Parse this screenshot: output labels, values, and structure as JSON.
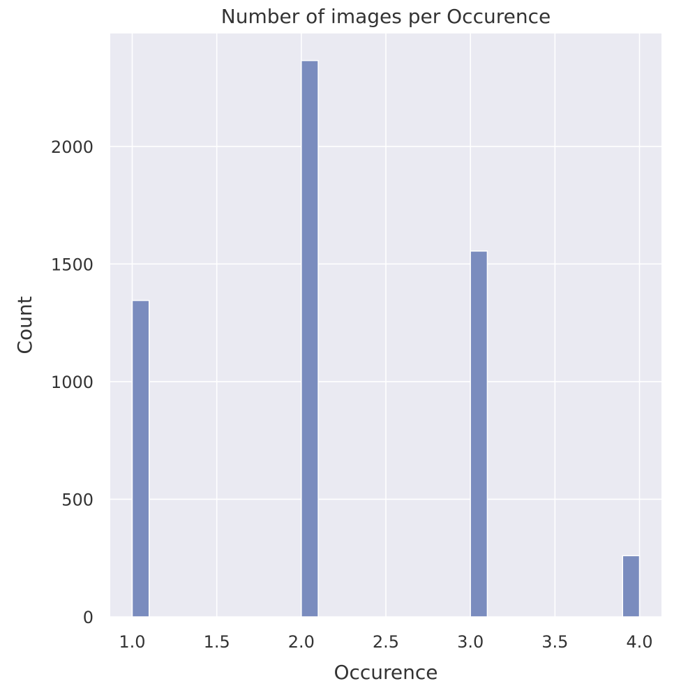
{
  "chart_data": {
    "type": "bar",
    "title": "Number of images per Occurence",
    "xlabel": "Occurence",
    "ylabel": "Count",
    "xlim": [
      0.87,
      4.13
    ],
    "ylim": [
      0,
      2480
    ],
    "xticks": [
      1.0,
      1.5,
      2.0,
      2.5,
      3.0,
      3.5,
      4.0
    ],
    "xtick_labels": [
      "1.0",
      "1.5",
      "2.0",
      "2.5",
      "3.0",
      "3.5",
      "4.0"
    ],
    "yticks": [
      0,
      500,
      1000,
      1500,
      2000
    ],
    "ytick_labels": [
      "0",
      "500",
      "1000",
      "1500",
      "2000"
    ],
    "bins": [
      {
        "x0": 1.0,
        "x1": 1.1,
        "value": 1345
      },
      {
        "x0": 2.0,
        "x1": 2.1,
        "value": 2365
      },
      {
        "x0": 3.0,
        "x1": 3.1,
        "value": 1555
      },
      {
        "x0": 3.9,
        "x1": 4.0,
        "value": 260
      }
    ],
    "grid": true,
    "colors": {
      "bar": "#7a8cbe",
      "bar_edge": "#ffffff",
      "plot_background": "#eaeaf2",
      "grid": "#ffffff",
      "text": "#333333"
    }
  }
}
